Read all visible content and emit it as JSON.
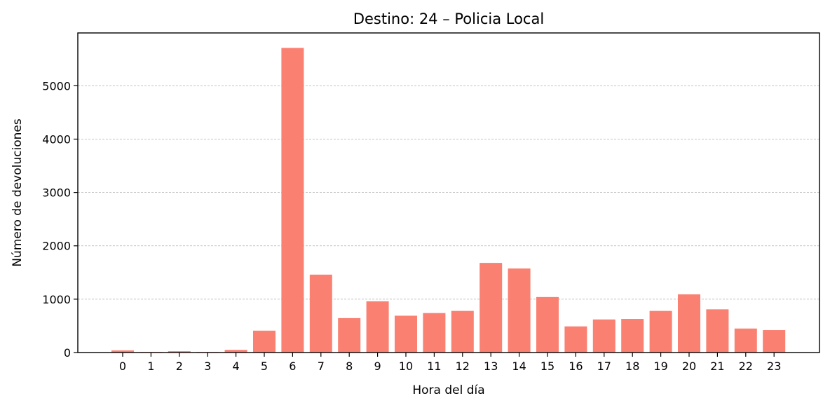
{
  "chart_data": {
    "type": "bar",
    "title": "Destino: 24 – Policia Local",
    "xlabel": "Hora del día",
    "ylabel": "Número de devoluciones",
    "categories": [
      "0",
      "1",
      "2",
      "3",
      "4",
      "5",
      "6",
      "7",
      "8",
      "9",
      "10",
      "11",
      "12",
      "13",
      "14",
      "15",
      "16",
      "17",
      "18",
      "19",
      "20",
      "21",
      "22",
      "23"
    ],
    "values": [
      40,
      10,
      25,
      10,
      50,
      410,
      5710,
      1460,
      645,
      960,
      690,
      740,
      780,
      1680,
      1575,
      1040,
      490,
      620,
      630,
      780,
      1090,
      810,
      450,
      420
    ],
    "ylim": [
      0,
      5990
    ],
    "yticks": [
      0,
      1000,
      2000,
      3000,
      4000,
      5000
    ],
    "grid": "y dashed",
    "bar_color": "#fa8072"
  }
}
